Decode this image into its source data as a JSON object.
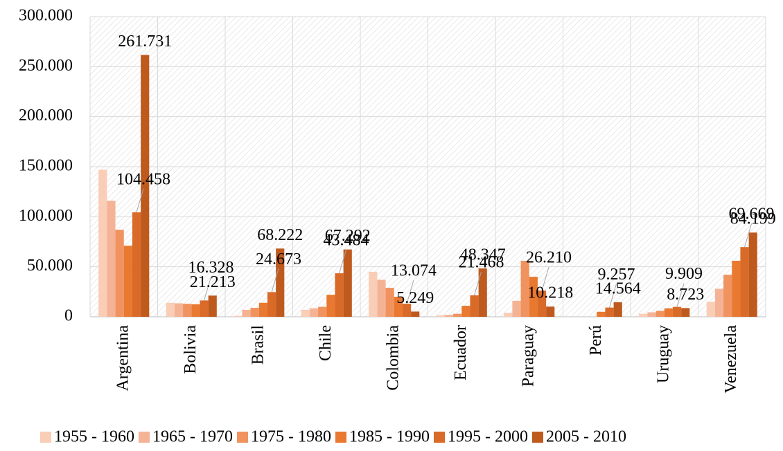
{
  "chart_data": {
    "type": "bar",
    "categories": [
      "Argentina",
      "Bolivia",
      "Brasil",
      "Chile",
      "Colombia",
      "Ecuador",
      "Paraguay",
      "Perú",
      "Uruguay",
      "Venezuela"
    ],
    "series": [
      {
        "name": "1955 - 1960",
        "color": "#f9cdb6",
        "values": [
          147000,
          14000,
          1000,
          7000,
          45000,
          1500,
          4000,
          0,
          3000,
          15000
        ]
      },
      {
        "name": "1965 - 1970",
        "color": "#f5b396",
        "values": [
          116000,
          13500,
          7000,
          8500,
          37000,
          2000,
          16000,
          0,
          4500,
          28000
        ],
        "value_labels": [
          null,
          null,
          null,
          null,
          null,
          null,
          null,
          null,
          null,
          null
        ]
      },
      {
        "name": "1975 - 1980",
        "color": "#f0935f",
        "values": [
          87000,
          13000,
          9000,
          10000,
          29000,
          3000,
          56000,
          0,
          6000,
          42000
        ]
      },
      {
        "name": "1985 - 1990",
        "color": "#e97830",
        "values": [
          71000,
          12500,
          14000,
          22000,
          20000,
          11000,
          40000,
          5000,
          8500,
          56000
        ]
      },
      {
        "name": "1995 - 2000",
        "color": "#d96a28",
        "values": [
          104458,
          16328,
          24673,
          43484,
          13074,
          21468,
          26210,
          9257,
          9909,
          69669
        ],
        "value_labels": [
          "104.458",
          "16.328",
          "24.673",
          "43.484",
          "13.074",
          "21.468",
          "26.210",
          "9.257",
          "9.909",
          "69.669"
        ]
      },
      {
        "name": "2005 - 2010",
        "color": "#bf5a1e",
        "values": [
          261731,
          21213,
          68222,
          67292,
          5249,
          48347,
          10218,
          14564,
          8723,
          84199
        ],
        "value_labels": [
          "261.731",
          "21.213",
          "68.222",
          "67.292",
          "5.249",
          "48.347",
          "10.218",
          "14.564",
          "8.723",
          "84.199"
        ]
      }
    ],
    "ylim": [
      0,
      300000
    ],
    "yticks": [
      0,
      {
        "value": 50000,
        "label": "50.000"
      },
      {
        "value": 100000,
        "label": "100.000"
      },
      {
        "value": 150000,
        "label": "150.000"
      },
      {
        "value": 200000,
        "label": "200.000"
      },
      {
        "value": 250000,
        "label": "250.000"
      },
      {
        "value": 300000,
        "label": "300.000"
      }
    ],
    "grid": true,
    "legend": "bottom"
  }
}
